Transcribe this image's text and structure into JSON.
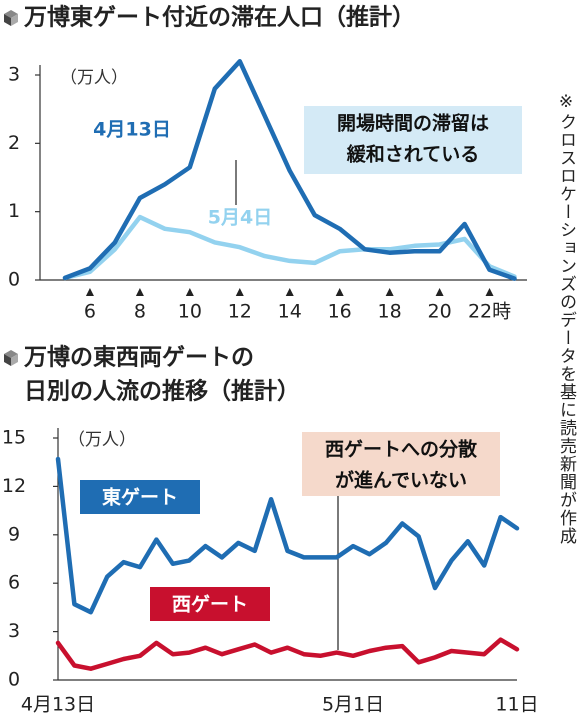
{
  "chart_data": [
    {
      "type": "line",
      "title": [
        "万博東ゲート付近の滞在人口（推計）"
      ],
      "y_label": "（万人）",
      "x": [
        5,
        6,
        7,
        8,
        9,
        10,
        11,
        12,
        13,
        14,
        15,
        16,
        17,
        18,
        19,
        20,
        21,
        22,
        23
      ],
      "xlim": [
        4,
        23.5
      ],
      "xticks": [
        6,
        8,
        10,
        12,
        14,
        16,
        18,
        20,
        {
          "value": 22,
          "label": "22時"
        }
      ],
      "ylim": [
        0,
        3
      ],
      "yticks": [
        0,
        1,
        2,
        3
      ],
      "annotation": [
        "開場時間の滞留は",
        "緩和されている"
      ],
      "series": [
        {
          "name": "4月13日",
          "color": "#1f6db3",
          "values": [
            0.03,
            0.17,
            0.55,
            1.2,
            1.4,
            1.65,
            2.8,
            3.2,
            2.4,
            1.6,
            0.95,
            0.75,
            0.45,
            0.4,
            0.42,
            0.42,
            0.82,
            0.15,
            0.02
          ]
        },
        {
          "name": "5月4日",
          "color": "#93d2ef",
          "values": [
            0.03,
            0.12,
            0.45,
            0.92,
            0.75,
            0.7,
            0.55,
            0.48,
            0.35,
            0.28,
            0.25,
            0.42,
            0.45,
            0.45,
            0.5,
            0.52,
            0.6,
            0.2,
            0.05
          ]
        }
      ]
    },
    {
      "type": "line",
      "title": [
        "万博の東西両ゲートの",
        "日別の人流の推移（推計）"
      ],
      "y_label": "（万人）",
      "categories": [
        "4月13日",
        null,
        null,
        null,
        null,
        null,
        null,
        null,
        null,
        null,
        null,
        null,
        null,
        null,
        null,
        null,
        null,
        null,
        "5月1日",
        null,
        null,
        null,
        null,
        null,
        null,
        null,
        null,
        null,
        "11日"
      ],
      "ylim": [
        0,
        15
      ],
      "yticks": [
        0,
        3,
        6,
        9,
        12,
        15
      ],
      "annotation": [
        "西ゲートへの分散",
        "が進んでいない"
      ],
      "series": [
        {
          "name": "東ゲート",
          "color": "#1f6db3",
          "values": [
            13.7,
            4.7,
            4.2,
            6.4,
            7.3,
            7.0,
            8.7,
            7.2,
            7.4,
            8.3,
            7.6,
            8.5,
            8.0,
            11.2,
            8.0,
            7.6,
            7.6,
            7.6,
            8.3,
            7.8,
            8.5,
            9.7,
            8.9,
            5.7,
            7.4,
            8.6,
            7.1,
            10.1,
            9.4
          ]
        },
        {
          "name": "西ゲート",
          "color": "#c8102e",
          "values": [
            2.3,
            0.9,
            0.7,
            1.0,
            1.3,
            1.5,
            2.3,
            1.6,
            1.7,
            2.0,
            1.6,
            1.9,
            2.2,
            1.7,
            2.0,
            1.6,
            1.5,
            1.7,
            1.5,
            1.8,
            2.0,
            2.1,
            1.1,
            1.4,
            1.8,
            1.7,
            1.6,
            2.5,
            1.9
          ]
        }
      ]
    }
  ],
  "note": "※クロスロケーションズのデータを基に読売新聞が作成"
}
